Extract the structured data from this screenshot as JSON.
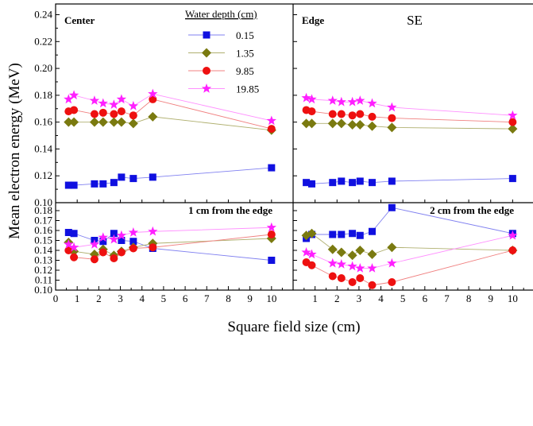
{
  "chart_data": {
    "type": "scatter",
    "ylabel": "Mean electron energy (MeV)",
    "xlabel": "Square field size (cm)",
    "corner_label": "SE",
    "x_ticks": [
      "0",
      "1",
      "2",
      "3",
      "4",
      "5",
      "6",
      "7",
      "8",
      "9",
      "10"
    ],
    "top_y_ticks": [
      "0.10",
      "0.12",
      "0.14",
      "0.16",
      "0.18",
      "0.20",
      "0.22",
      "0.24"
    ],
    "bottom_y_ticks": [
      "0.10",
      "0.11",
      "0.12",
      "0.13",
      "0.14",
      "0.15",
      "0.16",
      "0.17",
      "0.18"
    ],
    "xlim": [
      0,
      11
    ],
    "top_ylim": [
      0.1,
      0.248
    ],
    "bottom_ylim": [
      0.1,
      0.188
    ],
    "legend": {
      "title": "Water depth (cm)",
      "entries": [
        {
          "label": "0.15",
          "marker": "square",
          "color": "#1010e0",
          "line": "#8080f0"
        },
        {
          "label": "1.35",
          "marker": "diamond",
          "color": "#7a7a10",
          "line": "#b0b070"
        },
        {
          "label": "9.85",
          "marker": "circle",
          "color": "#ee1010",
          "line": "#f08080"
        },
        {
          "label": "19.85",
          "marker": "star",
          "color": "#ff20ff",
          "line": "#ff90ff"
        }
      ]
    },
    "panels": [
      {
        "title": "Center",
        "row": "top",
        "col": "left",
        "x": [
          0.6,
          0.85,
          1.8,
          2.2,
          2.7,
          3.05,
          3.6,
          4.5,
          10.0
        ],
        "series": [
          {
            "name": "0.15",
            "values": [
              0.113,
              0.113,
              0.114,
              0.114,
              0.115,
              0.119,
              0.118,
              0.119,
              0.126
            ]
          },
          {
            "name": "1.35",
            "values": [
              0.16,
              0.16,
              0.16,
              0.16,
              0.16,
              0.16,
              0.159,
              0.164,
              0.154
            ]
          },
          {
            "name": "9.85",
            "values": [
              0.168,
              0.169,
              0.166,
              0.167,
              0.166,
              0.168,
              0.165,
              0.177,
              0.155
            ]
          },
          {
            "name": "19.85",
            "values": [
              0.177,
              0.18,
              0.176,
              0.174,
              0.173,
              0.177,
              0.172,
              0.181,
              0.161
            ]
          }
        ]
      },
      {
        "title": "Edge",
        "row": "top",
        "col": "right",
        "x": [
          0.6,
          0.85,
          1.8,
          2.2,
          2.7,
          3.05,
          3.6,
          4.5,
          10.0
        ],
        "series": [
          {
            "name": "0.15",
            "values": [
              0.115,
              0.114,
              0.115,
              0.116,
              0.115,
              0.116,
              0.115,
              0.116,
              0.118
            ]
          },
          {
            "name": "1.35",
            "values": [
              0.159,
              0.159,
              0.159,
              0.159,
              0.158,
              0.158,
              0.157,
              0.156,
              0.155
            ]
          },
          {
            "name": "9.85",
            "values": [
              0.169,
              0.168,
              0.166,
              0.166,
              0.165,
              0.166,
              0.164,
              0.163,
              0.16
            ]
          },
          {
            "name": "19.85",
            "values": [
              0.178,
              0.177,
              0.176,
              0.175,
              0.175,
              0.176,
              0.174,
              0.171,
              0.165
            ]
          }
        ]
      },
      {
        "title": "1 cm from the edge",
        "row": "bottom",
        "col": "left",
        "x": [
          0.6,
          0.85,
          1.8,
          2.2,
          2.7,
          3.05,
          3.6,
          4.5,
          10.0
        ],
        "series": [
          {
            "name": "0.15",
            "values": [
              0.158,
              0.157,
              0.15,
              0.149,
              0.157,
              0.15,
              0.149,
              0.142,
              0.13
            ]
          },
          {
            "name": "1.35",
            "values": [
              0.148,
              0.139,
              0.136,
              0.141,
              0.135,
              0.139,
              0.143,
              0.147,
              0.152
            ]
          },
          {
            "name": "9.85",
            "values": [
              0.14,
              0.133,
              0.131,
              0.138,
              0.132,
              0.138,
              0.142,
              0.143,
              0.156
            ]
          },
          {
            "name": "19.85",
            "values": [
              0.146,
              0.143,
              0.146,
              0.153,
              0.151,
              0.155,
              0.158,
              0.159,
              0.163
            ]
          }
        ]
      },
      {
        "title": "2 cm from the edge",
        "row": "bottom",
        "col": "right",
        "x": [
          0.6,
          0.85,
          1.8,
          2.2,
          2.7,
          3.05,
          3.6,
          4.5,
          10.0
        ],
        "series": [
          {
            "name": "0.15",
            "values": [
              0.152,
              0.156,
              0.156,
              0.156,
              0.157,
              0.155,
              0.159,
              0.183,
              0.157
            ]
          },
          {
            "name": "1.35",
            "values": [
              0.155,
              0.157,
              0.141,
              0.138,
              0.135,
              0.14,
              0.136,
              0.143,
              0.14
            ]
          },
          {
            "name": "9.85",
            "values": [
              0.128,
              0.125,
              0.114,
              0.112,
              0.108,
              0.112,
              0.105,
              0.108,
              0.14
            ]
          },
          {
            "name": "19.85",
            "values": [
              0.138,
              0.136,
              0.127,
              0.126,
              0.124,
              0.122,
              0.122,
              0.127,
              0.155
            ]
          }
        ]
      }
    ]
  }
}
